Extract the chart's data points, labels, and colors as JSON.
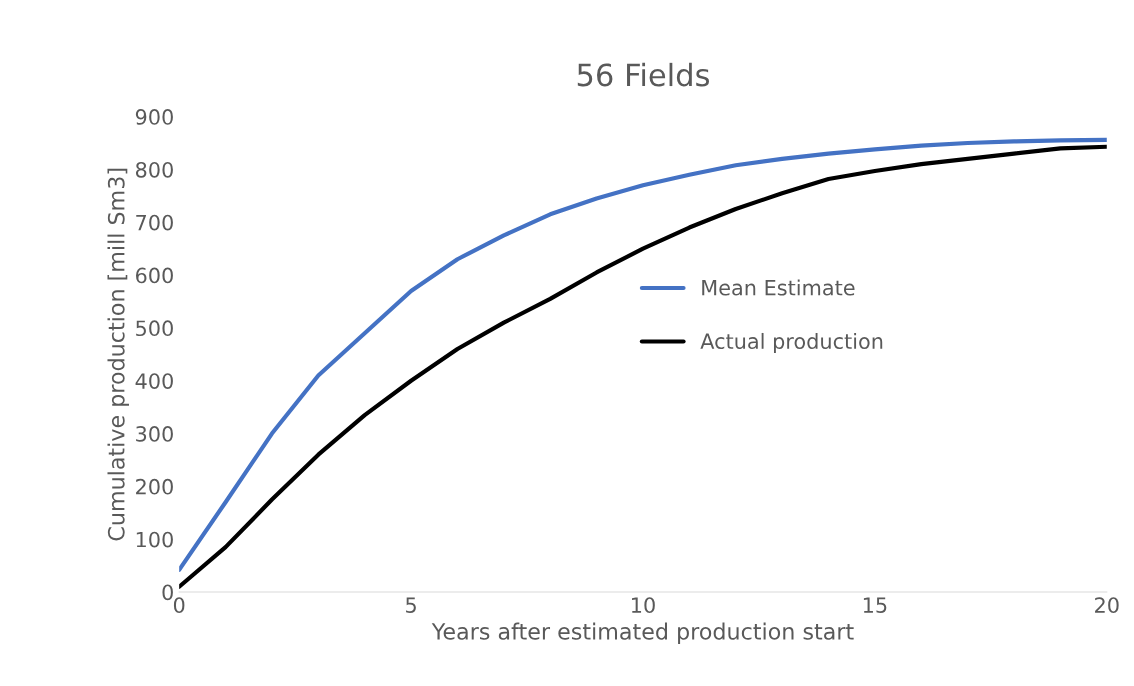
{
  "chart_data": {
    "type": "line",
    "title": "56 Fields",
    "xlabel": "Years after estimated production start",
    "ylabel": "Cumulative production [mill Sm3]",
    "x": [
      0,
      1,
      2,
      3,
      4,
      5,
      6,
      7,
      8,
      9,
      10,
      11,
      12,
      13,
      14,
      15,
      16,
      17,
      18,
      19,
      20
    ],
    "series": [
      {
        "name": "Mean Estimate",
        "color": "#4472c4",
        "values": [
          42,
          170,
          300,
          410,
          490,
          570,
          630,
          675,
          715,
          745,
          770,
          790,
          808,
          820,
          830,
          838,
          845,
          850,
          853,
          855,
          856
        ]
      },
      {
        "name": "Actual production",
        "color": "#000000",
        "values": [
          10,
          85,
          175,
          260,
          335,
          400,
          460,
          510,
          555,
          605,
          650,
          690,
          725,
          755,
          782,
          797,
          810,
          820,
          830,
          840,
          843
        ]
      }
    ],
    "xlim": [
      0,
      20
    ],
    "xticks": [
      0,
      5,
      10,
      15,
      20
    ],
    "ylim": [
      0,
      900
    ],
    "yticks": [
      0,
      100,
      200,
      300,
      400,
      500,
      600,
      700,
      800,
      900
    ],
    "grid": false,
    "legend": "right",
    "marker": "none",
    "line_style": "solid"
  }
}
